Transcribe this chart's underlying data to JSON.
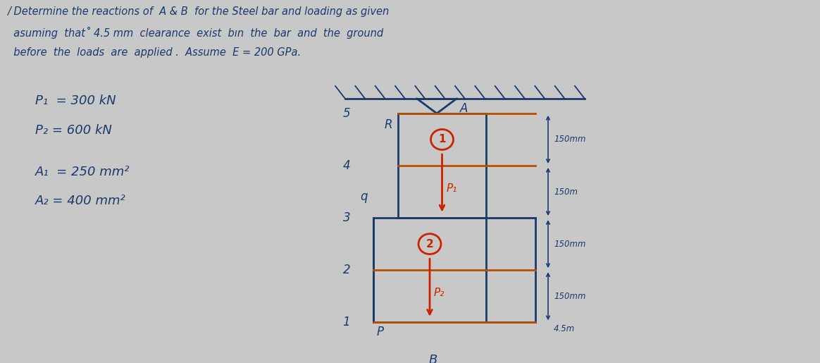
{
  "bg_color": "#c8c8c8",
  "text_color": "#1a3a6b",
  "red_color": "#cc2200",
  "orange_color": "#b85000",
  "title_line1": "/ Determine the reactions of  A & B  for the Steel bar and loading as given",
  "title_line2": "  asuming  that˚ 4.5 mm  clearance  exist  bın  the  bar  and  the  ground",
  "title_line3": "  before  the  loads  are  applied .  Assume  E = 200 GPa.",
  "given_P1": "P₁  = 300 kN",
  "given_P2": "P₂ = 600 kN",
  "given_A1": "A₁  = 250 mm²",
  "given_A2": "A₂ = 400 mm²",
  "dim_labels": [
    "150mm",
    "150m",
    "150mm",
    "150mm",
    "4.5m"
  ],
  "num_labels": [
    "5",
    "4",
    "3",
    "2",
    "1"
  ],
  "point_labels_left": [
    "R",
    "q",
    "P"
  ],
  "point_label_A": "A",
  "point_label_B": "B"
}
